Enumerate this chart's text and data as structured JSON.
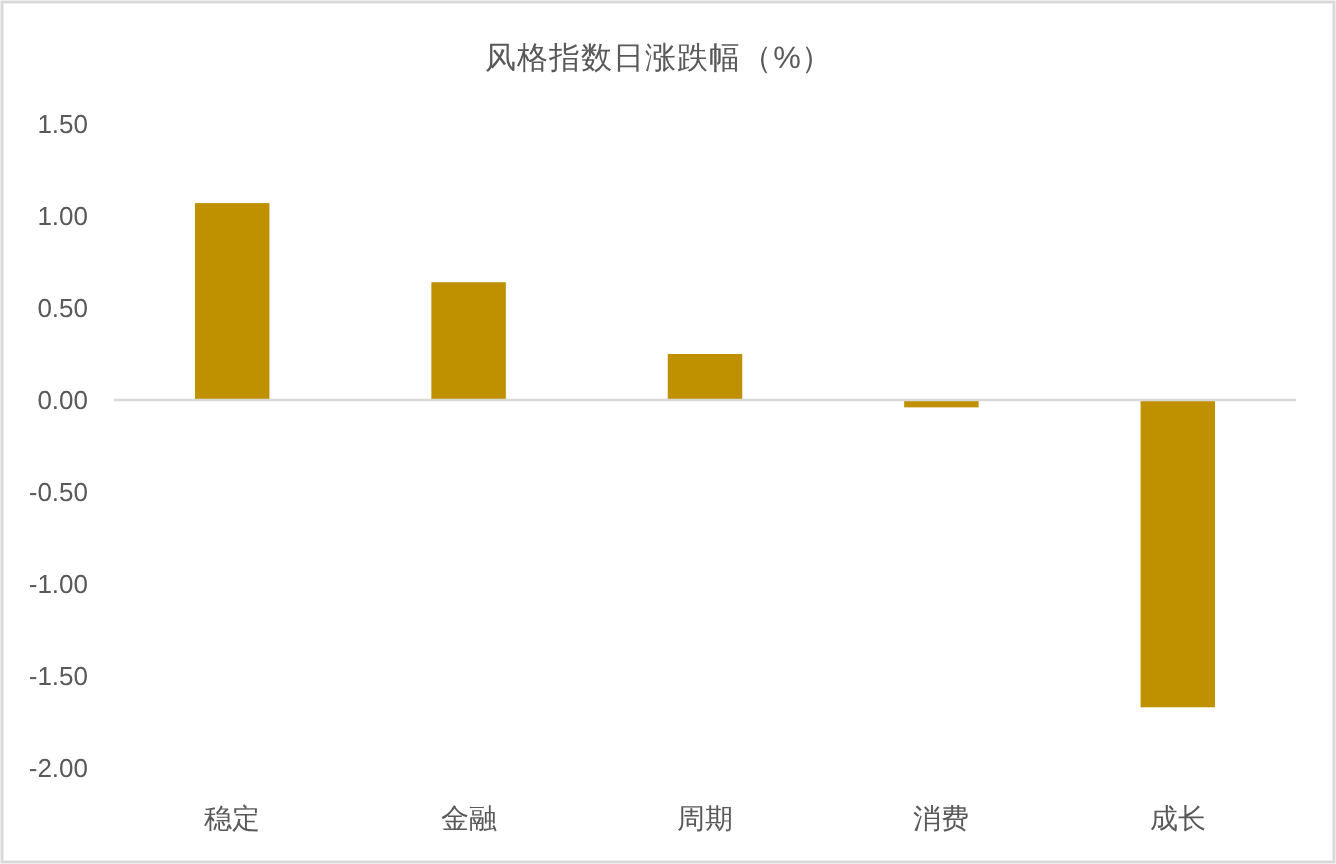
{
  "chart_data": {
    "type": "bar",
    "title": "风格指数日涨跌幅（%）",
    "categories": [
      "稳定",
      "金融",
      "周期",
      "消费",
      "成长"
    ],
    "values": [
      1.07,
      0.64,
      0.25,
      -0.04,
      -1.67
    ],
    "color": "#bf9000",
    "ylim": [
      -2,
      1.5
    ],
    "yticks": [
      {
        "value": -2,
        "label": "-2.00"
      },
      {
        "value": -1.5,
        "label": "-1.50"
      },
      {
        "value": -1,
        "label": "-1.00"
      },
      {
        "value": -0.5,
        "label": "-0.50"
      },
      {
        "value": 0,
        "label": "0.00"
      },
      {
        "value": 0.5,
        "label": "0.50"
      },
      {
        "value": 1,
        "label": "1.00"
      },
      {
        "value": 1.5,
        "label": "1.50"
      }
    ]
  }
}
